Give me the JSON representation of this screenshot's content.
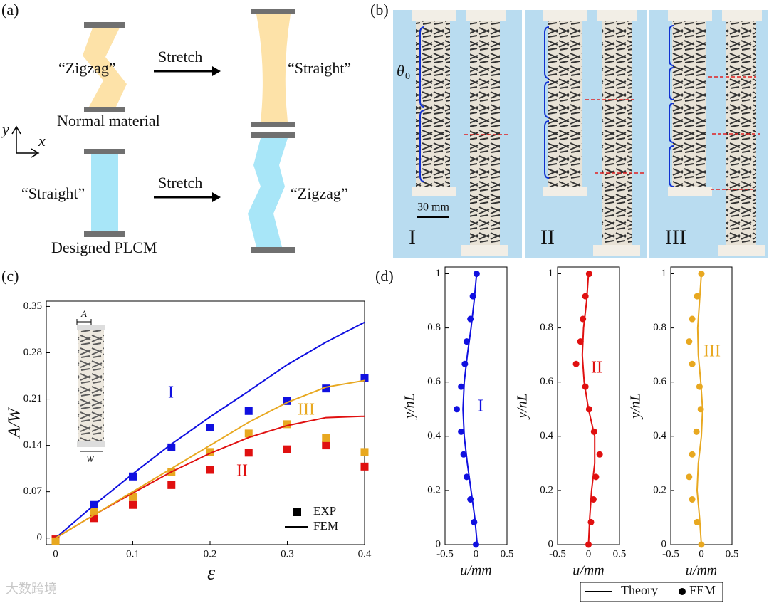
{
  "panel_a": {
    "label": "(a)",
    "top_left": "“Zigzag”",
    "top_arrow": "Stretch",
    "top_right": "“Straight”",
    "top_caption": "Normal material",
    "axis_y": "y",
    "axis_x": "x",
    "bottom_left": "“Straight”",
    "bottom_arrow": "Stretch",
    "bottom_right": "“Zigzag”",
    "bottom_caption": "Designed PLCM"
  },
  "panel_b": {
    "label": "(b)",
    "angle": "θ",
    "angle_sub": "0",
    "scale": "30 mm",
    "cases": [
      "I",
      "II",
      "III"
    ]
  },
  "panel_c": {
    "label": "(c)",
    "inset_a": "A",
    "inset_w": "W"
  },
  "panel_d": {
    "label": "(d)"
  },
  "watermark": "大数跨境",
  "chart_data": [
    {
      "type": "line",
      "xlabel": "ε",
      "ylabel": "A/W",
      "xlim": [
        -0.012,
        0.4
      ],
      "ylim": [
        -0.01,
        0.358
      ],
      "xticks": [
        0,
        0.1,
        0.2,
        0.3,
        0.4
      ],
      "yticks": [
        0,
        0.07,
        0.14,
        0.21,
        0.28,
        0.35
      ],
      "legend": [
        "EXP",
        "FEM"
      ],
      "series": [
        {
          "name": "I",
          "mode": "markers",
          "color": "#1010e0",
          "x": [
            0,
            0.05,
            0.1,
            0.15,
            0.2,
            0.25,
            0.3,
            0.35,
            0.4
          ],
          "values": [
            -0.005,
            0.05,
            0.093,
            0.137,
            0.167,
            0.192,
            0.207,
            0.226,
            0.242
          ]
        },
        {
          "name": "II",
          "mode": "markers",
          "color": "#e01010",
          "x": [
            0,
            0.05,
            0.1,
            0.15,
            0.2,
            0.25,
            0.3,
            0.35,
            0.4
          ],
          "values": [
            -0.002,
            0.03,
            0.05,
            0.08,
            0.103,
            0.129,
            0.134,
            0.14,
            0.108
          ]
        },
        {
          "name": "III",
          "mode": "markers",
          "color": "#e8a820",
          "x": [
            0,
            0.05,
            0.1,
            0.15,
            0.2,
            0.25,
            0.3,
            0.35,
            0.4
          ],
          "values": [
            -0.005,
            0.04,
            0.062,
            0.1,
            0.13,
            0.158,
            0.172,
            0.151,
            0.13
          ]
        },
        {
          "mode": "line",
          "color": "#1010e0",
          "x": [
            0,
            0.05,
            0.1,
            0.15,
            0.2,
            0.25,
            0.3,
            0.35,
            0.4
          ],
          "values": [
            0,
            0.05,
            0.097,
            0.142,
            0.183,
            0.222,
            0.262,
            0.296,
            0.326
          ]
        },
        {
          "mode": "line",
          "color": "#e01010",
          "x": [
            0,
            0.05,
            0.1,
            0.15,
            0.2,
            0.25,
            0.3,
            0.35,
            0.4
          ],
          "values": [
            0,
            0.035,
            0.068,
            0.1,
            0.128,
            0.152,
            0.17,
            0.182,
            0.184
          ]
        },
        {
          "mode": "line",
          "color": "#e8a820",
          "x": [
            0,
            0.05,
            0.1,
            0.15,
            0.2,
            0.25,
            0.3,
            0.35,
            0.4
          ],
          "values": [
            0,
            0.035,
            0.07,
            0.105,
            0.14,
            0.175,
            0.205,
            0.228,
            0.238
          ]
        }
      ]
    },
    {
      "type": "scatter",
      "annotation": "I",
      "xlabel": "u/mm",
      "ylabel": "y/nL",
      "xlim": [
        -0.5,
        0.5
      ],
      "ylim": [
        0,
        1.025
      ],
      "xticks": [
        -0.5,
        0,
        0.5
      ],
      "yticks": [
        0,
        0.2,
        0.4,
        0.6,
        0.8,
        1
      ],
      "series": [
        {
          "name": "Theory",
          "mode": "line",
          "color": "#1010e0",
          "x": [
            0.02,
            -0.02,
            -0.08,
            -0.14,
            -0.19,
            -0.21,
            -0.19,
            -0.14,
            -0.08,
            -0.03,
            0.01
          ],
          "values": [
            0,
            0.1,
            0.2,
            0.3,
            0.4,
            0.5,
            0.6,
            0.7,
            0.8,
            0.9,
            1
          ]
        },
        {
          "name": "FEM",
          "mode": "markers",
          "color": "#1010e0",
          "x": [
            0,
            -0.03,
            -0.09,
            -0.15,
            -0.2,
            -0.24,
            -0.31,
            -0.24,
            -0.18,
            -0.15,
            -0.09,
            -0.05,
            0.01
          ],
          "values": [
            0,
            0.083,
            0.167,
            0.25,
            0.333,
            0.417,
            0.5,
            0.583,
            0.667,
            0.75,
            0.833,
            0.917,
            1
          ]
        }
      ]
    },
    {
      "type": "scatter",
      "annotation": "II",
      "xlabel": "u/mm",
      "ylabel": "y/nL",
      "xlim": [
        -0.5,
        0.5
      ],
      "ylim": [
        0,
        1.025
      ],
      "xticks": [
        -0.5,
        0,
        0.5
      ],
      "yticks": [
        0,
        0.2,
        0.4,
        0.6,
        0.8,
        1
      ],
      "series": [
        {
          "mode": "line",
          "color": "#e01010",
          "x": [
            0,
            0.02,
            0.05,
            0.1,
            0.1,
            0,
            -0.07,
            -0.1,
            -0.08,
            -0.03,
            0
          ],
          "values": [
            0,
            0.1,
            0.2,
            0.3,
            0.4,
            0.5,
            0.6,
            0.7,
            0.8,
            0.9,
            1
          ]
        },
        {
          "mode": "markers",
          "color": "#e01010",
          "x": [
            0,
            0.04,
            0.08,
            0.12,
            0.18,
            0.09,
            0.01,
            -0.05,
            -0.2,
            -0.13,
            -0.09,
            -0.05,
            0.01
          ],
          "values": [
            0,
            0.083,
            0.167,
            0.25,
            0.333,
            0.417,
            0.5,
            0.583,
            0.667,
            0.75,
            0.833,
            0.917,
            1
          ]
        }
      ]
    },
    {
      "type": "scatter",
      "annotation": "III",
      "xlabel": "u/mm",
      "ylabel": "y/nL",
      "xlim": [
        -0.5,
        0.5
      ],
      "ylim": [
        0,
        1.025
      ],
      "xticks": [
        -0.5,
        0,
        0.5
      ],
      "yticks": [
        0,
        0.2,
        0.4,
        0.6,
        0.8,
        1
      ],
      "series": [
        {
          "mode": "line",
          "color": "#e8a820",
          "x": [
            0,
            -0.03,
            -0.07,
            -0.05,
            0,
            0.02,
            -0.01,
            -0.05,
            -0.06,
            -0.03,
            0
          ],
          "values": [
            0,
            0.1,
            0.2,
            0.3,
            0.4,
            0.5,
            0.6,
            0.7,
            0.8,
            0.9,
            1
          ]
        },
        {
          "mode": "markers",
          "color": "#e8a820",
          "x": [
            0,
            -0.07,
            -0.15,
            -0.2,
            -0.15,
            -0.08,
            -0.01,
            -0.03,
            -0.15,
            -0.2,
            -0.15,
            -0.07,
            0
          ],
          "values": [
            0,
            0.083,
            0.167,
            0.25,
            0.333,
            0.417,
            0.5,
            0.583,
            0.667,
            0.75,
            0.833,
            0.917,
            1
          ]
        }
      ]
    }
  ]
}
